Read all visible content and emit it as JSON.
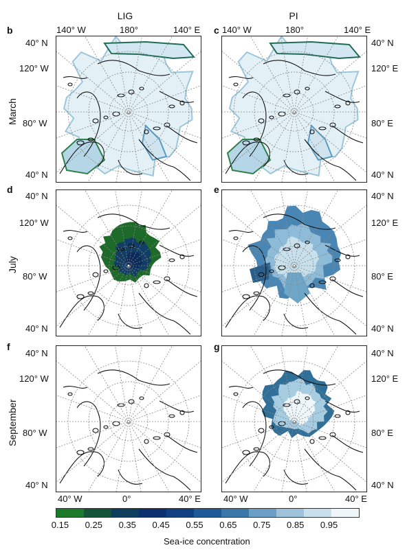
{
  "columns": [
    "LIG",
    "PI"
  ],
  "rows": [
    "March",
    "July",
    "September"
  ],
  "panels": [
    {
      "letter": "b",
      "row": "March",
      "column": "LIG",
      "ice": "march"
    },
    {
      "letter": "c",
      "row": "March",
      "column": "PI",
      "ice": "march"
    },
    {
      "letter": "d",
      "row": "July",
      "column": "LIG",
      "ice": "july_lig"
    },
    {
      "letter": "e",
      "row": "July",
      "column": "PI",
      "ice": "july_pi"
    },
    {
      "letter": "f",
      "row": "September",
      "column": "LIG",
      "ice": "none"
    },
    {
      "letter": "g",
      "row": "September",
      "column": "PI",
      "ice": "sept_pi"
    }
  ],
  "top_longitudes": {
    "left": "140° W",
    "center": "180°",
    "right": "140° E"
  },
  "bottom_longitudes": {
    "left": "40° W",
    "center": "0°",
    "right": "40° E"
  },
  "left_labels": {
    "top": "40° N",
    "mid_upper": "120° W",
    "mid_lower": "80° W",
    "bottom": "40° N"
  },
  "right_labels": {
    "top": "40° N",
    "mid_upper": "120° E",
    "mid_lower": "80° E",
    "bottom": "40° N"
  },
  "colorbar": {
    "title": "Sea-ice concentration",
    "ticks": [
      "0.15",
      "0.25",
      "0.35",
      "0.45",
      "0.55",
      "0.65",
      "0.75",
      "0.85",
      "0.95"
    ],
    "colors": [
      "#1a7a2a",
      "#14553a",
      "#0f3e5c",
      "#0c2f6e",
      "#123f80",
      "#1e5a96",
      "#3a78aa",
      "#6a9ec4",
      "#9dc2da",
      "#c8dfec",
      "#eef6fa"
    ]
  }
}
